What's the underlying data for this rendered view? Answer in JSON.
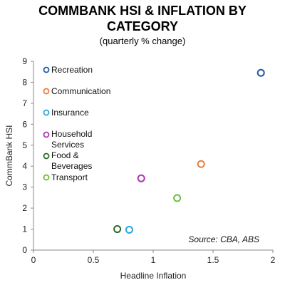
{
  "chart_data": {
    "type": "scatter",
    "title_line1": "COMMBANK HSI & INFLATION BY",
    "title_line2": "CATEGORY",
    "subtitle": "(quarterly % change)",
    "xlabel": "Headline Inflation",
    "ylabel": "CommBank HSI",
    "xlim": [
      0,
      2
    ],
    "ylim": [
      0,
      9
    ],
    "xticks": [
      "0",
      "0.5",
      "1",
      "1.5",
      "2"
    ],
    "yticks": [
      "0",
      "1",
      "2",
      "3",
      "4",
      "5",
      "6",
      "7",
      "8",
      "9"
    ],
    "legend_position": "top-left",
    "grid": false,
    "source": "Source: CBA, ABS",
    "series": [
      {
        "name": "Recreation",
        "color": "#1f5fa0",
        "x": 1.9,
        "y": 8.45,
        "legend_lines": [
          "Recreation"
        ]
      },
      {
        "name": "Communication",
        "color": "#ef7b3a",
        "x": 1.4,
        "y": 4.1,
        "legend_lines": [
          "Communication"
        ]
      },
      {
        "name": "Insurance",
        "color": "#29a8de",
        "x": 0.8,
        "y": 0.97,
        "legend_lines": [
          "Insurance"
        ]
      },
      {
        "name": "Household Services",
        "color": "#a83ab3",
        "x": 0.9,
        "y": 3.42,
        "legend_lines": [
          "Household",
          "Services"
        ]
      },
      {
        "name": "Food & Beverages",
        "color": "#2f6b2b",
        "x": 0.7,
        "y": 1.0,
        "legend_lines": [
          "Food &",
          "Beverages"
        ]
      },
      {
        "name": "Transport",
        "color": "#6cbd3f",
        "x": 1.2,
        "y": 2.48,
        "legend_lines": [
          "Transport"
        ]
      }
    ]
  }
}
